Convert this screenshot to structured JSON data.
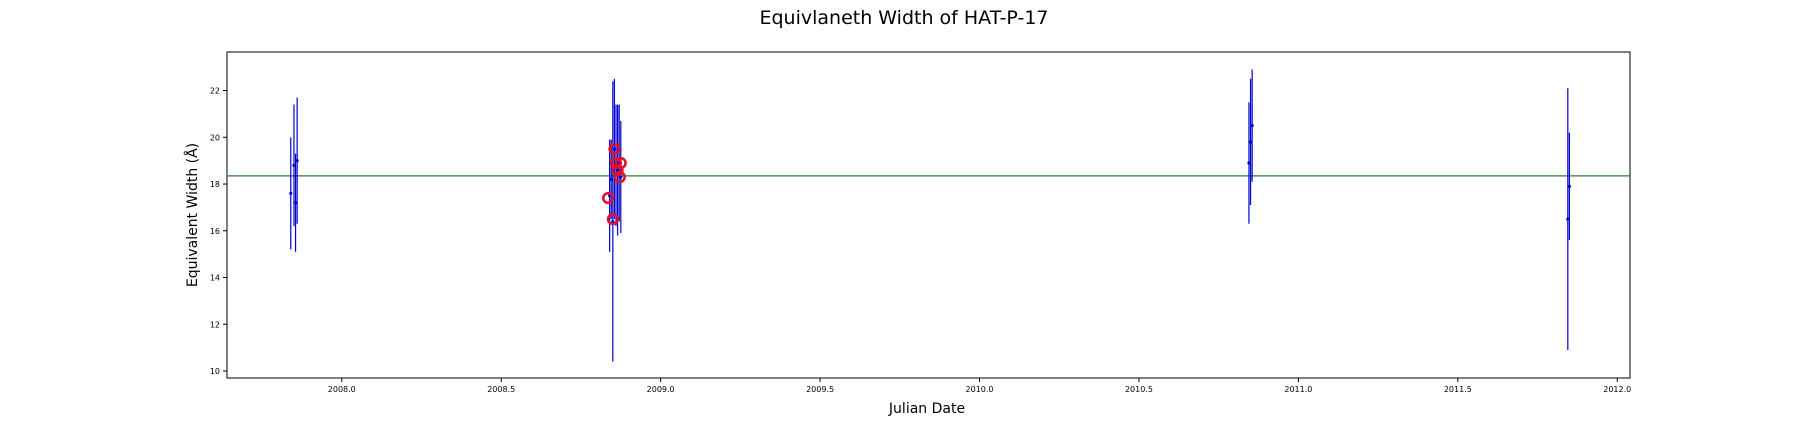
{
  "chart_data": {
    "type": "scatter",
    "title": "Equivlaneth Width of HAT-P-17",
    "xlabel": "Julian Date",
    "ylabel": "Equivalent Width (Å)",
    "xlim": [
      2007.64,
      2012.04
    ],
    "ylim": [
      9.7,
      23.65
    ],
    "xticks": [
      2008.0,
      2008.5,
      2009.0,
      2009.5,
      2010.0,
      2010.5,
      2011.0,
      2011.5,
      2012.0
    ],
    "xtick_labels": [
      "2008.0",
      "2008.5",
      "2009.0",
      "2009.5",
      "2010.0",
      "2010.5",
      "2011.0",
      "2011.5",
      "2012.0"
    ],
    "yticks": [
      10,
      12,
      14,
      16,
      18,
      20,
      22
    ],
    "ytick_labels": [
      "10",
      "12",
      "14",
      "16",
      "18",
      "20",
      "22"
    ],
    "grid": false,
    "mean_line": {
      "value": 18.35,
      "color": "#2e7d32"
    },
    "series": [
      {
        "color": "#0000cc",
        "marker": "dot",
        "points": [
          {
            "x": 2007.84,
            "y": 17.6,
            "err": 2.4
          },
          {
            "x": 2007.85,
            "y": 18.8,
            "err": 2.6
          },
          {
            "x": 2007.855,
            "y": 17.2,
            "err": 2.1
          },
          {
            "x": 2007.86,
            "y": 19.0,
            "err": 2.7
          },
          {
            "x": 2008.84,
            "y": 17.5,
            "err": 2.4
          },
          {
            "x": 2008.845,
            "y": 18.2,
            "err": 1.7
          },
          {
            "x": 2008.85,
            "y": 16.4,
            "err": 6.0
          },
          {
            "x": 2008.855,
            "y": 19.5,
            "err": 3.0
          },
          {
            "x": 2008.86,
            "y": 18.8,
            "err": 2.6
          },
          {
            "x": 2008.865,
            "y": 18.6,
            "err": 2.8
          },
          {
            "x": 2008.87,
            "y": 18.9,
            "err": 2.5
          },
          {
            "x": 2008.875,
            "y": 18.3,
            "err": 2.4
          },
          {
            "x": 2010.845,
            "y": 18.9,
            "err": 2.6
          },
          {
            "x": 2010.85,
            "y": 19.8,
            "err": 2.7
          },
          {
            "x": 2010.855,
            "y": 20.5,
            "err": 2.4
          },
          {
            "x": 2011.845,
            "y": 16.5,
            "err": 5.6
          },
          {
            "x": 2011.85,
            "y": 17.9,
            "err": 2.3
          }
        ]
      },
      {
        "color": "#e0102a",
        "marker": "circle",
        "points": [
          {
            "x": 2008.835,
            "y": 17.4
          },
          {
            "x": 2008.85,
            "y": 16.5
          },
          {
            "x": 2008.855,
            "y": 19.5
          },
          {
            "x": 2008.86,
            "y": 18.9
          },
          {
            "x": 2008.865,
            "y": 18.6
          },
          {
            "x": 2008.872,
            "y": 18.3
          },
          {
            "x": 2008.875,
            "y": 18.9
          }
        ]
      }
    ]
  }
}
